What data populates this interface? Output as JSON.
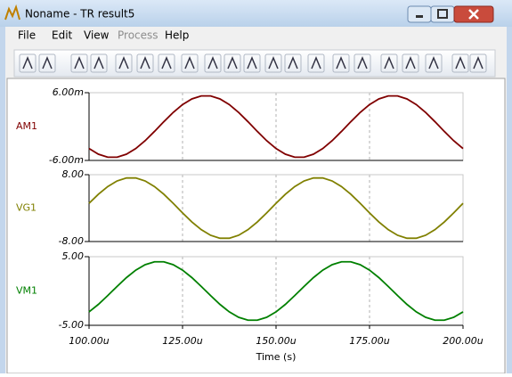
{
  "window": {
    "title": "Noname - TR result5",
    "menu": [
      {
        "label": "File",
        "enabled": true
      },
      {
        "label": "Edit",
        "enabled": true
      },
      {
        "label": "View",
        "enabled": true
      },
      {
        "label": "Process",
        "enabled": false
      },
      {
        "label": "Help",
        "enabled": true
      }
    ]
  },
  "chart_data": [
    {
      "type": "line",
      "ylabel": "AM1",
      "xlim": [
        100,
        200
      ],
      "ylim": [
        -6,
        6
      ],
      "yticks": [
        {
          "value": -6,
          "label": "-6.00m"
        },
        {
          "value": 6,
          "label": "6.00m"
        }
      ],
      "x": [
        100,
        102.5,
        105,
        107.5,
        110,
        112.5,
        115,
        117.5,
        120,
        122.5,
        125,
        127.5,
        130,
        132.5,
        135,
        137.5,
        140,
        142.5,
        145,
        147.5,
        150,
        152.5,
        155,
        157.5,
        160,
        162.5,
        165,
        167.5,
        170,
        172.5,
        175,
        177.5,
        180,
        182.5,
        185,
        187.5,
        190,
        192.5,
        195,
        197.5,
        200
      ],
      "series": [
        {
          "name": "AM1",
          "color": "#800000",
          "values": [
            -3.89,
            -4.9,
            -5.43,
            -5.43,
            -4.9,
            -3.89,
            -2.5,
            -0.86,
            0.86,
            2.5,
            3.89,
            4.9,
            5.43,
            5.43,
            4.9,
            3.89,
            2.5,
            0.86,
            -0.86,
            -2.5,
            -3.89,
            -4.9,
            -5.43,
            -5.43,
            -4.9,
            -3.89,
            -2.5,
            -0.86,
            0.86,
            2.5,
            3.89,
            4.9,
            5.43,
            5.43,
            4.9,
            3.89,
            2.5,
            0.86,
            -0.86,
            -2.5,
            -3.89
          ]
        }
      ]
    },
    {
      "type": "line",
      "ylabel": "VG1",
      "xlim": [
        100,
        200
      ],
      "ylim": [
        -8,
        8
      ],
      "yticks": [
        {
          "value": -8,
          "label": "-8.00"
        },
        {
          "value": 8,
          "label": "8.00"
        }
      ],
      "x": [
        100,
        102.5,
        105,
        107.5,
        110,
        112.5,
        115,
        117.5,
        120,
        122.5,
        125,
        127.5,
        130,
        132.5,
        135,
        137.5,
        140,
        142.5,
        145,
        147.5,
        150,
        152.5,
        155,
        157.5,
        160,
        162.5,
        165,
        167.5,
        170,
        172.5,
        175,
        177.5,
        180,
        182.5,
        185,
        187.5,
        190,
        192.5,
        195,
        197.5,
        200
      ],
      "series": [
        {
          "name": "VG1",
          "color": "#808000",
          "values": [
            1.14,
            3.31,
            5.16,
            6.5,
            7.21,
            7.21,
            6.5,
            5.16,
            3.31,
            1.14,
            -1.14,
            -3.31,
            -5.16,
            -6.5,
            -7.21,
            -7.21,
            -6.5,
            -5.16,
            -3.31,
            -1.14,
            1.14,
            3.31,
            5.16,
            6.5,
            7.21,
            7.21,
            6.5,
            5.16,
            3.31,
            1.14,
            -1.14,
            -3.31,
            -5.16,
            -6.5,
            -7.21,
            -7.21,
            -6.5,
            -5.16,
            -3.31,
            -1.14,
            1.14
          ]
        }
      ]
    },
    {
      "type": "line",
      "ylabel": "VM1",
      "xlabel": "Time (s)",
      "xlim": [
        100,
        200
      ],
      "ylim": [
        -5,
        5
      ],
      "yticks": [
        {
          "value": -5,
          "label": "-5.00"
        },
        {
          "value": 5,
          "label": "5.00"
        }
      ],
      "xticks": [
        {
          "value": 100,
          "label": "100.00u"
        },
        {
          "value": 125,
          "label": "125.00u"
        },
        {
          "value": 150,
          "label": "150.00u"
        },
        {
          "value": 175,
          "label": "175.00u"
        },
        {
          "value": 200,
          "label": "200.00u"
        }
      ],
      "x": [
        100,
        102.5,
        105,
        107.5,
        110,
        112.5,
        115,
        117.5,
        120,
        122.5,
        125,
        127.5,
        130,
        132.5,
        135,
        137.5,
        140,
        142.5,
        145,
        147.5,
        150,
        152.5,
        155,
        157.5,
        160,
        162.5,
        165,
        167.5,
        170,
        172.5,
        175,
        177.5,
        180,
        182.5,
        185,
        187.5,
        190,
        192.5,
        195,
        197.5,
        200
      ],
      "series": [
        {
          "name": "VM1",
          "color": "#008000",
          "values": [
            -3.04,
            -1.95,
            -0.67,
            0.67,
            1.95,
            3.04,
            3.83,
            4.25,
            4.25,
            3.83,
            3.04,
            1.95,
            0.67,
            -0.67,
            -1.95,
            -3.04,
            -3.83,
            -4.25,
            -4.25,
            -3.83,
            -3.04,
            -1.95,
            -0.67,
            0.67,
            1.95,
            3.04,
            3.83,
            4.25,
            4.25,
            3.83,
            3.04,
            1.95,
            0.67,
            -0.67,
            -1.95,
            -3.04,
            -3.83,
            -4.25,
            -4.25,
            -3.83,
            -3.04
          ]
        }
      ]
    }
  ]
}
